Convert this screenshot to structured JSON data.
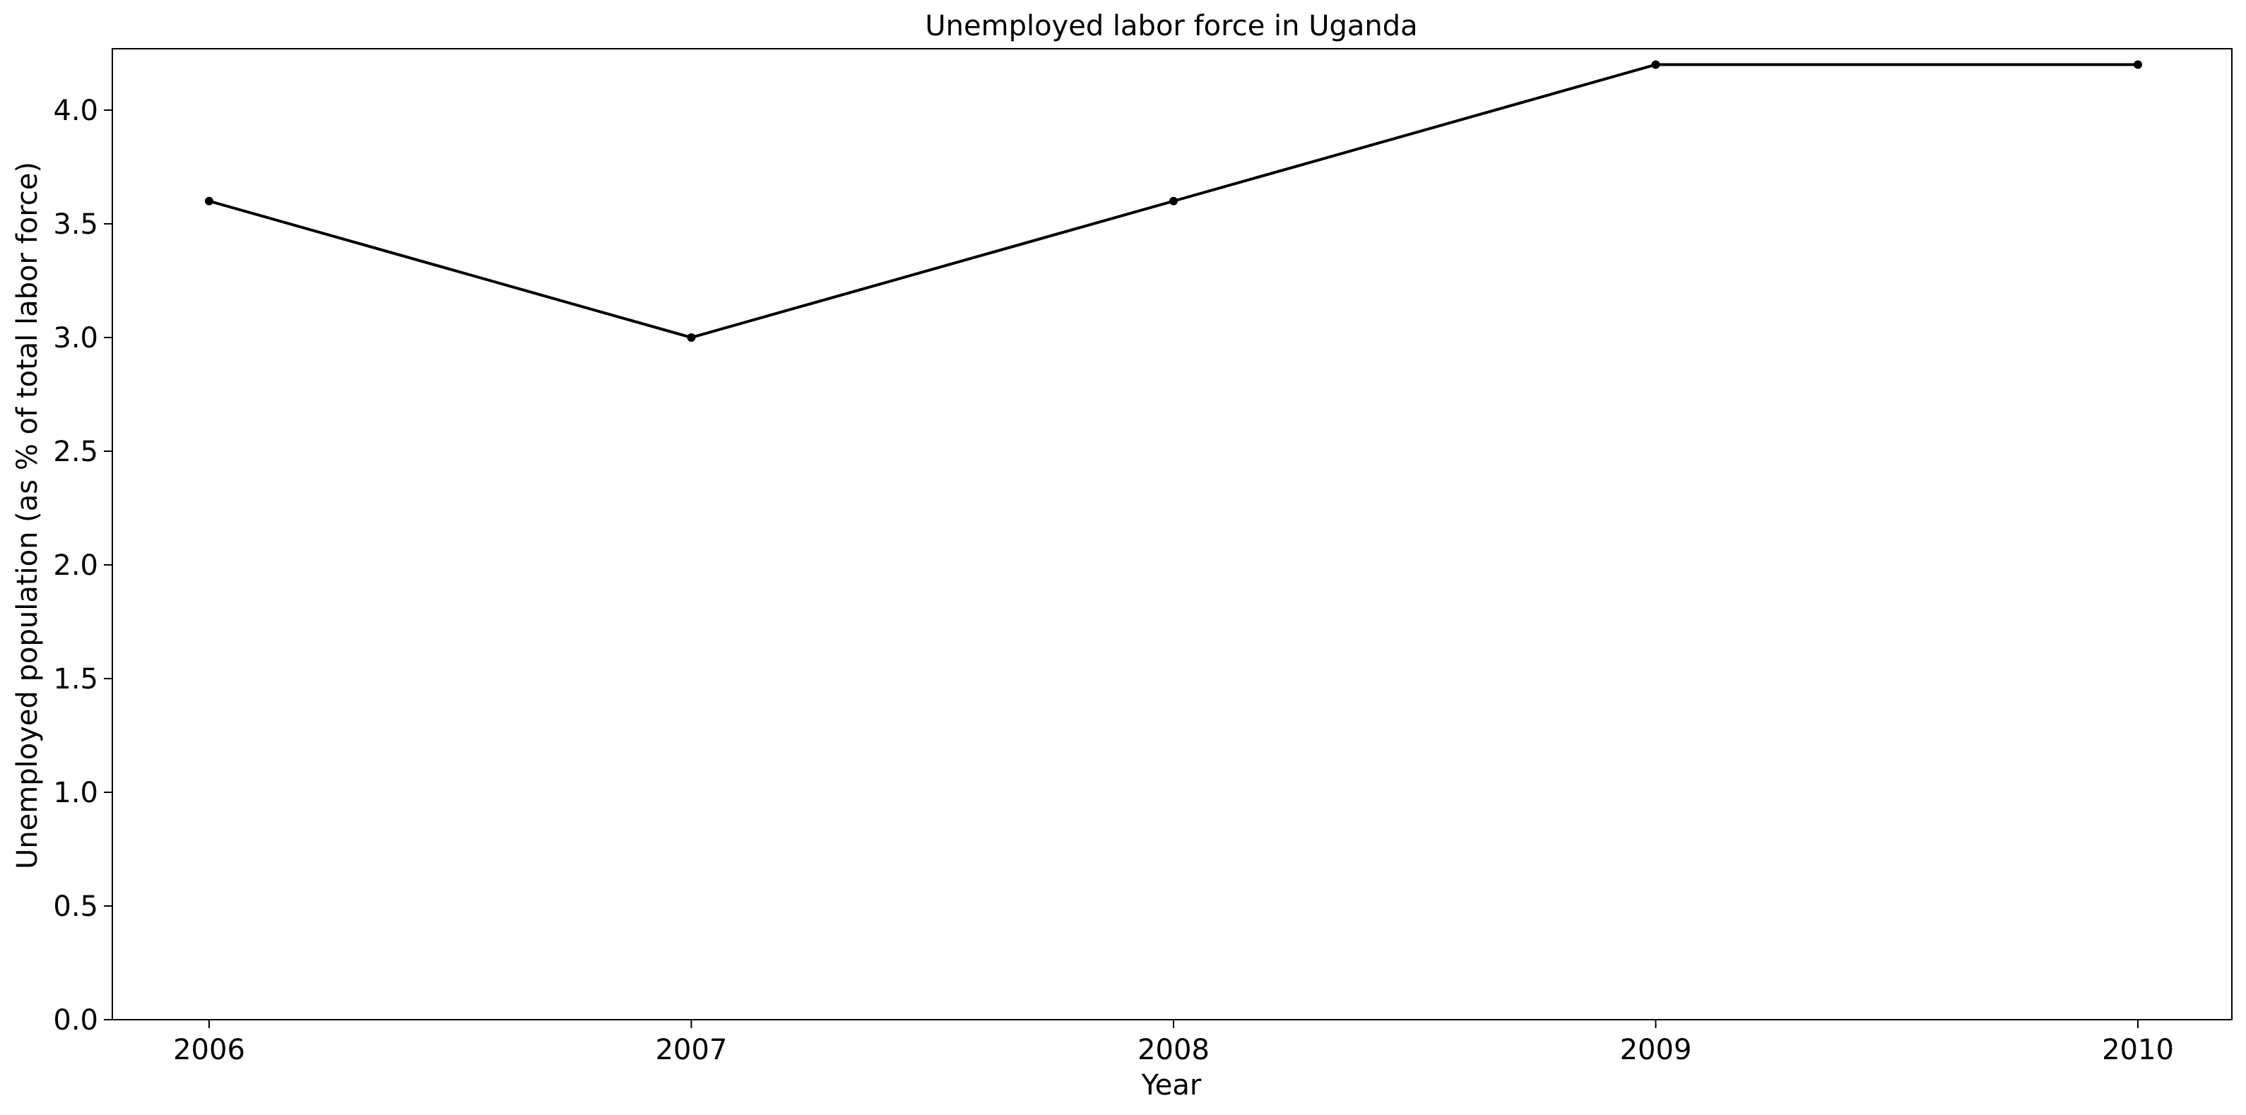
{
  "chart_data": {
    "type": "line",
    "title": "Unemployed labor force in Uganda",
    "xlabel": "Year",
    "ylabel": "Unemployed population (as % of total labor force)",
    "x": [
      "2006",
      "2007",
      "2008",
      "2009",
      "2010"
    ],
    "series": [
      {
        "values": [
          3.6,
          3.0,
          3.6,
          4.2,
          4.2
        ],
        "color": "#000000",
        "marker": "dot"
      }
    ],
    "ylim": [
      0,
      4.27
    ],
    "yticks": [
      "0.0",
      "0.5",
      "1.0",
      "1.5",
      "2.0",
      "2.5",
      "3.0",
      "3.5",
      "4.0"
    ],
    "grid": false,
    "legend": false
  }
}
